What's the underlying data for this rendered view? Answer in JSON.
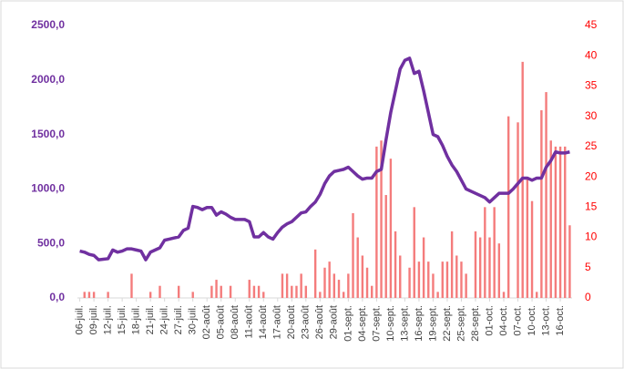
{
  "chart_data": {
    "type": "bar_line",
    "categories": [
      "06-juil.",
      null,
      null,
      "09-juil.",
      null,
      null,
      "12-juil.",
      null,
      null,
      "15-juil.",
      null,
      null,
      "18-juil.",
      null,
      null,
      "21-juil.",
      null,
      null,
      "24-juil.",
      null,
      null,
      "27-juil.",
      null,
      null,
      "30-juil.",
      null,
      null,
      "02-août",
      null,
      null,
      "05-août",
      null,
      null,
      "08-août",
      null,
      null,
      "11-août",
      null,
      null,
      "14-août",
      null,
      null,
      "17-août",
      null,
      null,
      "20-août",
      null,
      null,
      "23-août",
      null,
      null,
      "26-août",
      null,
      null,
      "29-août",
      null,
      null,
      "01-sept.",
      null,
      null,
      "04-sept.",
      null,
      null,
      "07-sept.",
      null,
      null,
      "10-sept.",
      null,
      null,
      "13-sept.",
      null,
      null,
      "16-sept.",
      null,
      null,
      "19-sept.",
      null,
      null,
      "22-sept.",
      null,
      null,
      "25-sept.",
      null,
      null,
      "28-sept.",
      null,
      null,
      "01-oct.",
      null,
      null,
      "04-oct.",
      null,
      null,
      "07-oct.",
      null,
      null,
      "10-oct.",
      null,
      null,
      "13-oct.",
      null,
      null,
      "16-oct.",
      null,
      null
    ],
    "series": [
      {
        "type": "bar",
        "axis": "y2",
        "color": "#f47c7c",
        "values": [
          0,
          1,
          1,
          1,
          0,
          0,
          1,
          0,
          0,
          0,
          0,
          4,
          0,
          0,
          0,
          1,
          0,
          2,
          0,
          0,
          0,
          2,
          0,
          0,
          1,
          0,
          0,
          0,
          2,
          3,
          2,
          0,
          2,
          0,
          0,
          0,
          3,
          2,
          2,
          1,
          0,
          0,
          0,
          4,
          4,
          2,
          2,
          4,
          2,
          0,
          8,
          1,
          5,
          6,
          4,
          3,
          1,
          4,
          14,
          10,
          7,
          5,
          2,
          25,
          26,
          17,
          23,
          11,
          7,
          0,
          5,
          15,
          6,
          10,
          6,
          4,
          1,
          6,
          6,
          11,
          7,
          6,
          4,
          0,
          11,
          10,
          15,
          10,
          15,
          9,
          1,
          30,
          0,
          29,
          39,
          20,
          16,
          1,
          31,
          34,
          26,
          25,
          25,
          25,
          12
        ]
      },
      {
        "type": "line",
        "axis": "y",
        "color": "#7030a0",
        "values": [
          430,
          420,
          400,
          390,
          350,
          355,
          360,
          440,
          420,
          430,
          450,
          450,
          440,
          430,
          350,
          420,
          440,
          460,
          530,
          540,
          550,
          560,
          620,
          640,
          840,
          830,
          810,
          830,
          830,
          760,
          790,
          770,
          740,
          720,
          720,
          720,
          700,
          560,
          560,
          600,
          560,
          540,
          600,
          650,
          680,
          700,
          740,
          780,
          790,
          840,
          880,
          950,
          1050,
          1120,
          1160,
          1170,
          1180,
          1200,
          1160,
          1120,
          1090,
          1100,
          1100,
          1160,
          1180,
          1450,
          1700,
          1900,
          2100,
          2180,
          2200,
          2060,
          2080,
          1900,
          1700,
          1500,
          1480,
          1400,
          1300,
          1220,
          1160,
          1080,
          1000,
          980,
          960,
          940,
          920,
          880,
          920,
          960,
          960,
          960,
          1000,
          1050,
          1100,
          1100,
          1080,
          1100,
          1100,
          1200,
          1260,
          1340,
          1330,
          1330,
          1340
        ]
      }
    ],
    "ylim": [
      0,
      2500
    ],
    "yticks": [
      {
        "value": 0,
        "label": "0,0"
      },
      {
        "value": 500,
        "label": "500,0"
      },
      {
        "value": 1000,
        "label": "1000,0"
      },
      {
        "value": 1500,
        "label": "1500,0"
      },
      {
        "value": 2000,
        "label": "2000,0"
      },
      {
        "value": 2500,
        "label": "2500,0"
      }
    ],
    "y2lim": [
      0,
      45
    ],
    "y2ticks": [
      0,
      5,
      10,
      15,
      20,
      25,
      30,
      35,
      40,
      45
    ]
  }
}
